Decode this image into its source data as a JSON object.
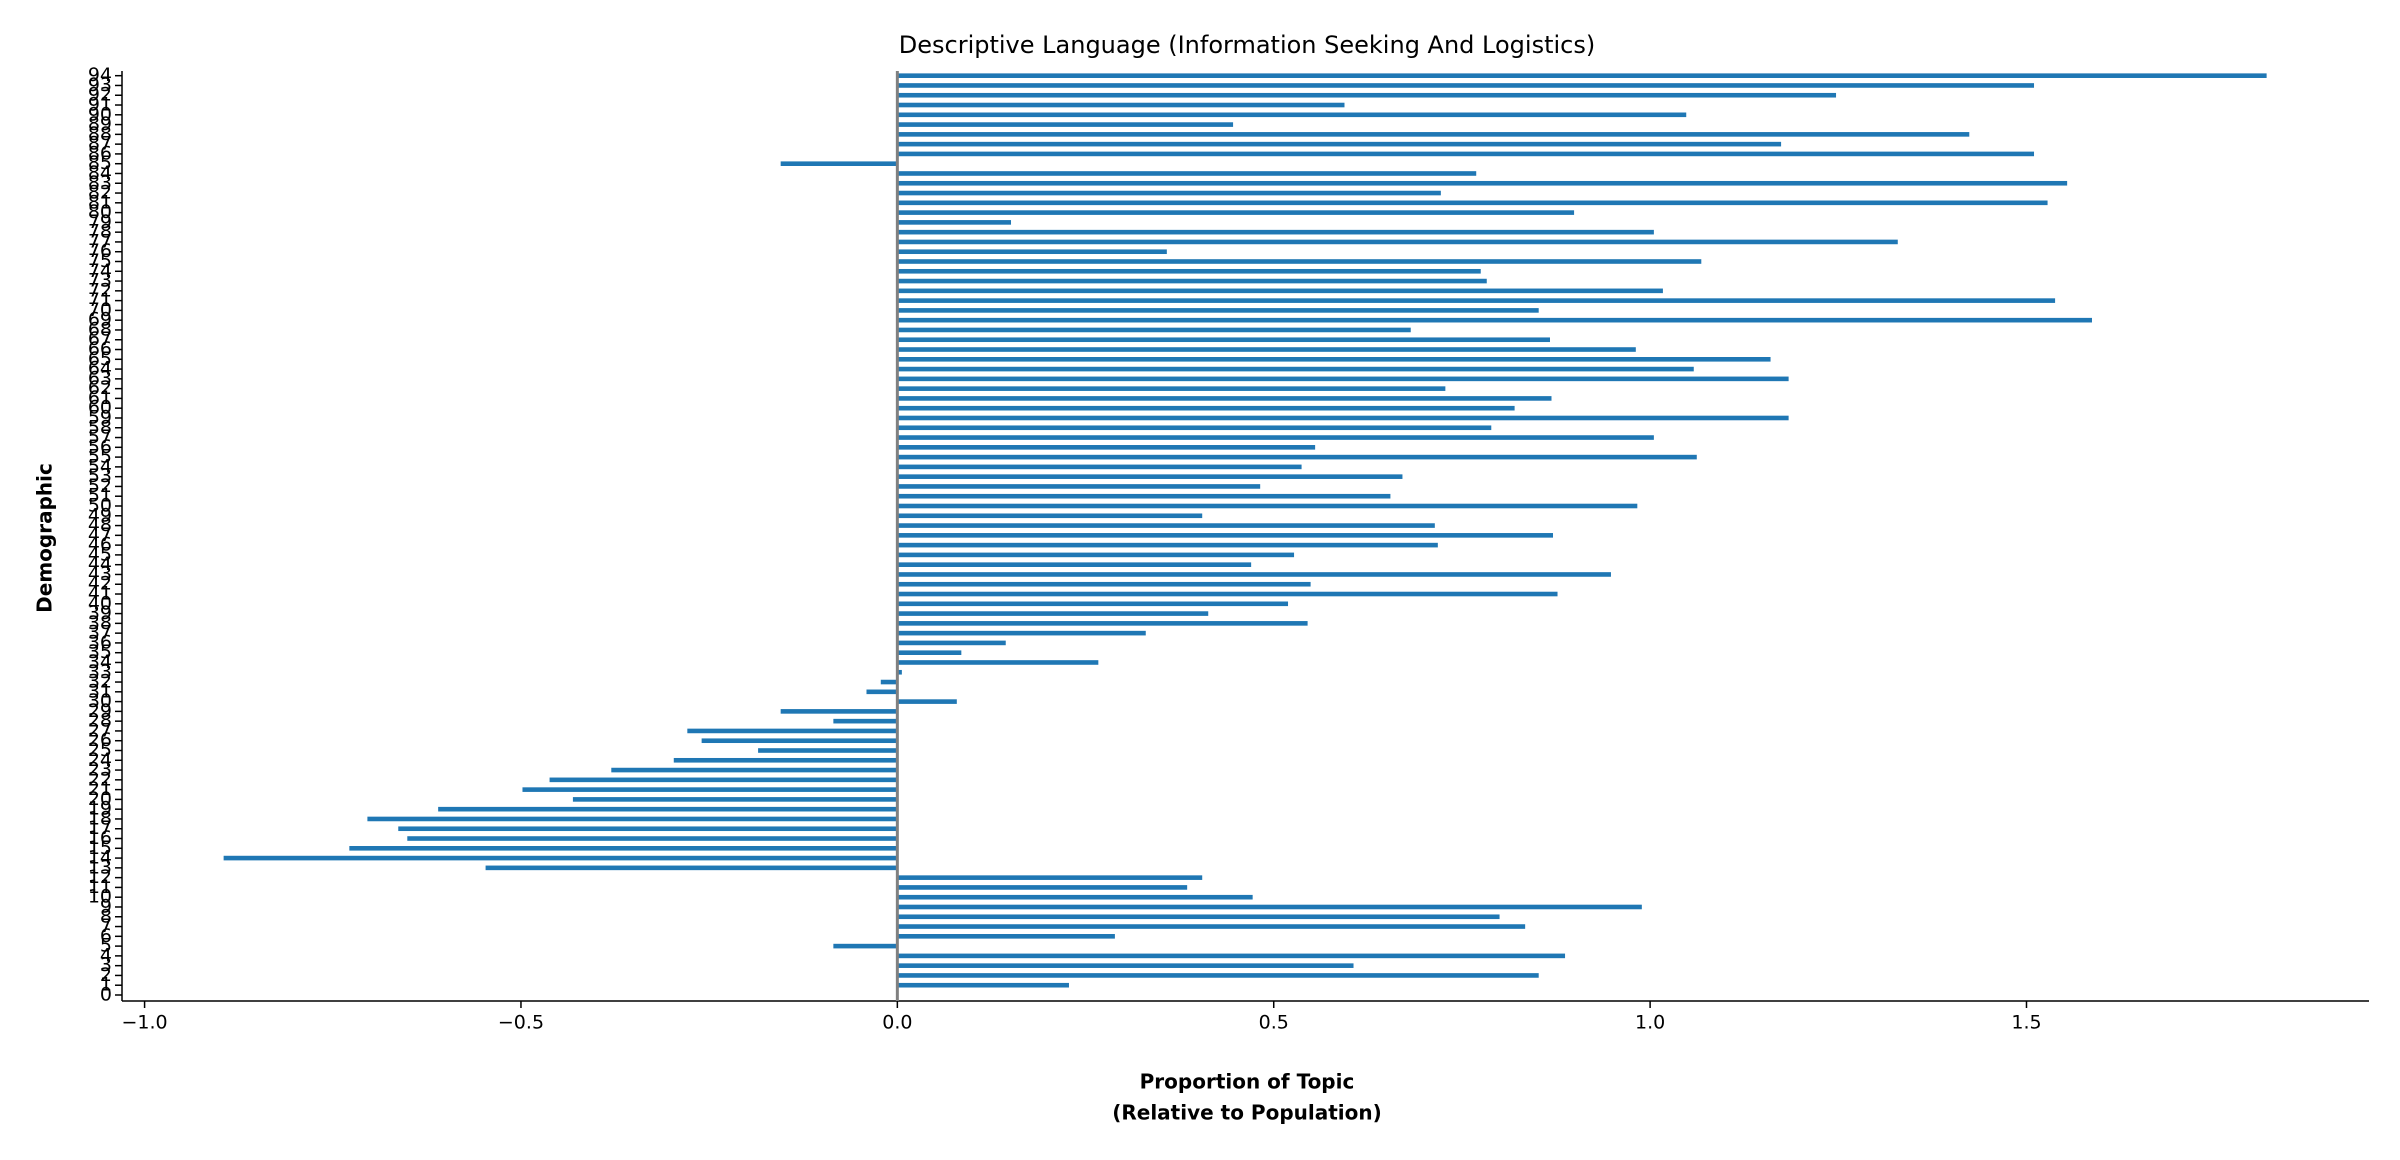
{
  "chart_data": {
    "type": "barh",
    "title": "Descriptive Language (Information Seeking And Logistics)",
    "xlabel": [
      "Proportion of Topic",
      "(Relative to Population)"
    ],
    "ylabel": "Demographic",
    "color": "#1f77b4",
    "zero_line_color": "#808080",
    "categories": [
      "0",
      "1",
      "2",
      "3",
      "4",
      "5",
      "6",
      "7",
      "8",
      "9",
      "10",
      "11",
      "12",
      "13",
      "14",
      "15",
      "16",
      "17",
      "18",
      "19",
      "20",
      "21",
      "22",
      "23",
      "24",
      "25",
      "26",
      "27",
      "28",
      "29",
      "30",
      "31",
      "32",
      "33",
      "34",
      "35",
      "36",
      "37",
      "38",
      "39",
      "40",
      "41",
      "42",
      "43",
      "44",
      "45",
      "46",
      "47",
      "48",
      "49",
      "50",
      "51",
      "52",
      "53",
      "54",
      "55",
      "56",
      "57",
      "58",
      "59",
      "60",
      "61",
      "62",
      "63",
      "64",
      "65",
      "66",
      "67",
      "68",
      "69",
      "70",
      "71",
      "72",
      "73",
      "74",
      "75",
      "76",
      "77",
      "78",
      "79",
      "80",
      "81",
      "82",
      "83",
      "84",
      "85",
      "86",
      "87",
      "88",
      "89",
      "90",
      "91",
      "92",
      "93",
      "94"
    ],
    "values": [
      0,
      0.228,
      0.852,
      0.606,
      0.887,
      -0.085,
      0.289,
      0.834,
      0.8,
      0.989,
      0.472,
      0.385,
      0.405,
      -0.547,
      -0.895,
      -0.728,
      -0.651,
      -0.663,
      -0.704,
      -0.61,
      -0.431,
      -0.498,
      -0.462,
      -0.38,
      -0.297,
      -0.185,
      -0.26,
      -0.279,
      -0.085,
      -0.155,
      0.079,
      -0.041,
      -0.022,
      0.006,
      0.267,
      0.085,
      0.144,
      0.33,
      0.545,
      0.413,
      0.519,
      0.877,
      0.549,
      0.948,
      0.47,
      0.527,
      0.718,
      0.871,
      0.714,
      0.405,
      0.983,
      0.655,
      0.482,
      0.671,
      0.537,
      1.062,
      0.555,
      1.005,
      0.789,
      1.184,
      0.82,
      0.869,
      0.728,
      1.184,
      1.058,
      1.16,
      0.981,
      0.867,
      0.682,
      1.587,
      0.852,
      1.538,
      1.017,
      0.783,
      0.775,
      1.068,
      0.358,
      1.329,
      1.005,
      0.151,
      0.899,
      1.528,
      0.722,
      1.554,
      0.769,
      -0.155,
      1.51,
      1.174,
      1.424,
      0.446,
      1.048,
      0.594,
      1.247,
      1.51,
      1.819
    ],
    "xlim": [
      -1.03,
      1.955
    ],
    "xticks": [
      {
        "value": -1.0,
        "label": "−1.0"
      },
      {
        "value": -0.5,
        "label": "−0.5"
      },
      {
        "value": 0.0,
        "label": "0.0"
      },
      0.5,
      {
        "value": 1.0,
        "label": "1.0"
      },
      1.5
    ]
  }
}
